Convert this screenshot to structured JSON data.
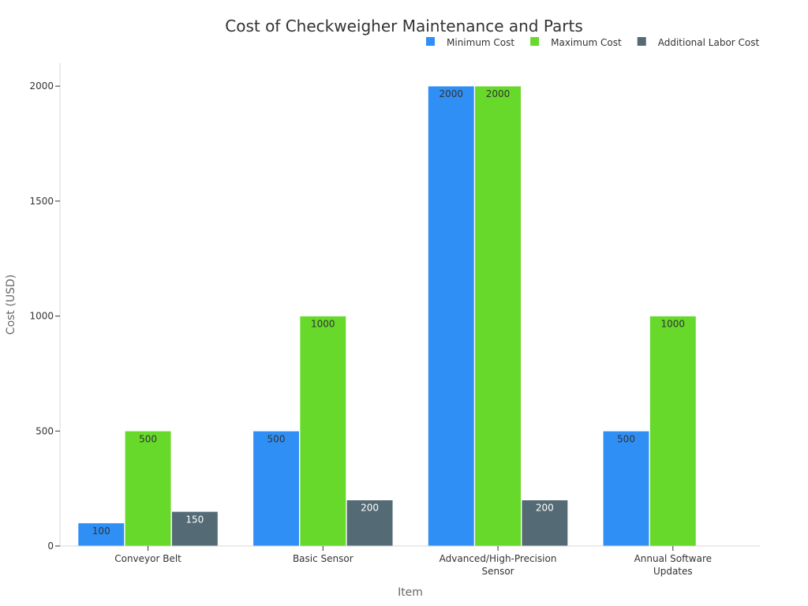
{
  "chart_data": {
    "type": "bar",
    "title": "Cost of Checkweigher Maintenance and Parts",
    "xlabel": "Item",
    "ylabel": "Cost (USD)",
    "ylim": [
      0,
      2100
    ],
    "yticks": [
      0,
      500,
      1000,
      1500,
      2000
    ],
    "grid": false,
    "legend_position": "top-right",
    "categories": [
      [
        "Conveyor Belt"
      ],
      [
        "Basic Sensor"
      ],
      [
        "Advanced/High-Precision",
        "Sensor"
      ],
      [
        "Annual Software",
        "Updates"
      ]
    ],
    "series": [
      {
        "name": "Minimum Cost",
        "color": "#2f8ff5",
        "label_color": "#333333",
        "values": [
          100,
          500,
          2000,
          500
        ]
      },
      {
        "name": "Maximum Cost",
        "color": "#66d92a",
        "label_color": "#333333",
        "values": [
          500,
          1000,
          2000,
          1000
        ]
      },
      {
        "name": "Additional Labor Cost",
        "color": "#546b75",
        "label_color": "#ffffff",
        "values": [
          150,
          200,
          200,
          null
        ]
      }
    ]
  }
}
